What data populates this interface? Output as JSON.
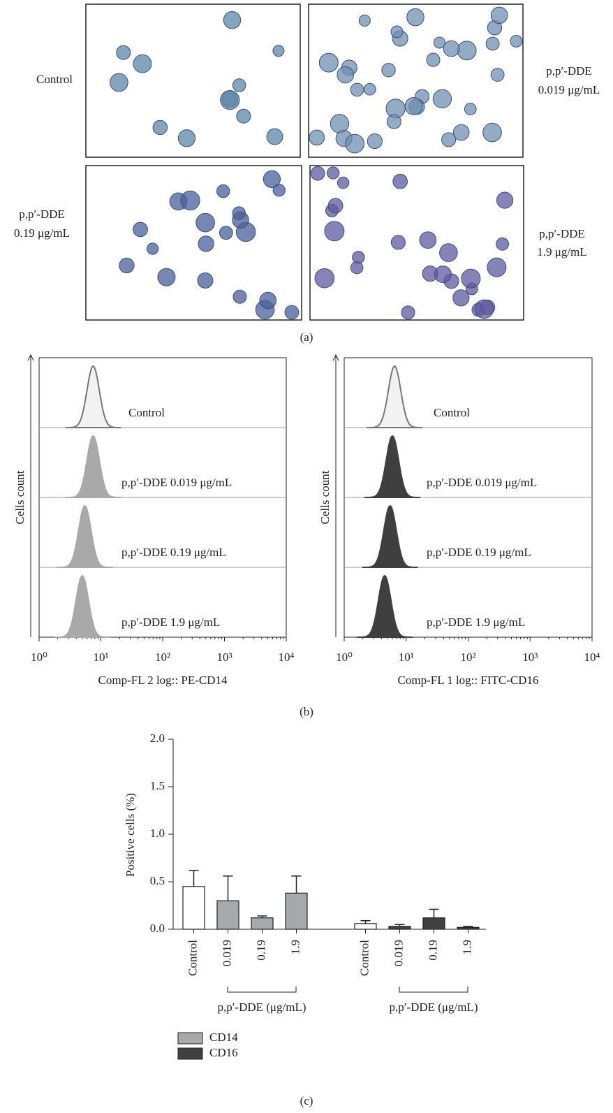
{
  "panel_a": {
    "caption": "(a)",
    "images": [
      {
        "label": [
          "Control"
        ]
      },
      {
        "label": [
          "p,p′-DDE",
          "0.019 μg/mL"
        ]
      },
      {
        "label": [
          "p,p′-DDE",
          "0.19 μg/mL"
        ]
      },
      {
        "label": [
          "p,p′-DDE",
          "1.9 μg/mL"
        ]
      }
    ]
  },
  "panel_b": {
    "caption": "(b)"
  },
  "panel_c": {
    "caption": "(c)"
  },
  "chart_data": [
    {
      "type": "histogram-stack",
      "xlabel": "Comp-FL 2 log:: PE-CD14",
      "ylabel": "Cells count",
      "xscale": "log",
      "xlim": [
        1,
        10000
      ],
      "xticks": [
        {
          "value": 1,
          "label": "10⁰"
        },
        {
          "value": 10,
          "label": "10¹"
        },
        {
          "value": 100,
          "label": "10²"
        },
        {
          "value": 1000,
          "label": "10³"
        },
        {
          "value": 10000,
          "label": "10⁴"
        }
      ],
      "series": [
        {
          "name": "Control",
          "color": "#f2f2f2",
          "stroke": "#777777",
          "peak": 7.5
        },
        {
          "name": "p,p′-DDE 0.019 μg/mL",
          "color": "#a9a9a9",
          "stroke": "#a9a9a9",
          "peak": 7.5
        },
        {
          "name": "p,p′-DDE 0.19 μg/mL",
          "color": "#a9a9a9",
          "stroke": "#a9a9a9",
          "peak": 5.5
        },
        {
          "name": "p,p′-DDE 1.9 μg/mL",
          "color": "#a9a9a9",
          "stroke": "#a9a9a9",
          "peak": 5
        }
      ]
    },
    {
      "type": "histogram-stack",
      "xlabel": "Comp-FL 1 log:: FITC-CD16",
      "ylabel": "Cells count",
      "xscale": "log",
      "xlim": [
        1,
        10000
      ],
      "xticks": [
        {
          "value": 1,
          "label": "10⁰"
        },
        {
          "value": 10,
          "label": "10¹"
        },
        {
          "value": 100,
          "label": "10²"
        },
        {
          "value": 1000,
          "label": "10³"
        },
        {
          "value": 10000,
          "label": "10⁴"
        }
      ],
      "series": [
        {
          "name": "Control",
          "color": "#f2f2f2",
          "stroke": "#777777",
          "peak": 6.5
        },
        {
          "name": "p,p′-DDE 0.019 μg/mL",
          "color": "#3f3f3f",
          "stroke": "#3f3f3f",
          "peak": 6
        },
        {
          "name": "p,p′-DDE 0.19 μg/mL",
          "color": "#3f3f3f",
          "stroke": "#3f3f3f",
          "peak": 5.5
        },
        {
          "name": "p,p′-DDE 1.9 μg/mL",
          "color": "#3f3f3f",
          "stroke": "#3f3f3f",
          "peak": 4.5
        }
      ]
    },
    {
      "type": "bar",
      "ylabel": "Positive cells (%)",
      "ylim": [
        0,
        2
      ],
      "yticks": [
        {
          "value": 0,
          "label": "0.0"
        },
        {
          "value": 0.5,
          "label": "0.5"
        },
        {
          "value": 1,
          "label": "1.0"
        },
        {
          "value": 1.5,
          "label": "1.5"
        },
        {
          "value": 2,
          "label": "2.0"
        }
      ],
      "control_color": "#ffffff",
      "groups": [
        {
          "name": "CD14",
          "color": "#a7a9ac",
          "categories": [
            "Control",
            "0.019",
            "0.19",
            "1.9"
          ],
          "values": [
            0.45,
            0.3,
            0.12,
            0.38
          ],
          "errors": [
            0.17,
            0.26,
            0.02,
            0.18
          ],
          "bracket_label": "p,p′-DDE (μg/mL)"
        },
        {
          "name": "CD16",
          "color": "#404040",
          "categories": [
            "Control",
            "0.019",
            "0.19",
            "1.9"
          ],
          "values": [
            0.06,
            0.03,
            0.12,
            0.02
          ],
          "errors": [
            0.03,
            0.02,
            0.09,
            0.01
          ],
          "bracket_label": "p,p′-DDE (μg/mL)"
        }
      ]
    }
  ]
}
